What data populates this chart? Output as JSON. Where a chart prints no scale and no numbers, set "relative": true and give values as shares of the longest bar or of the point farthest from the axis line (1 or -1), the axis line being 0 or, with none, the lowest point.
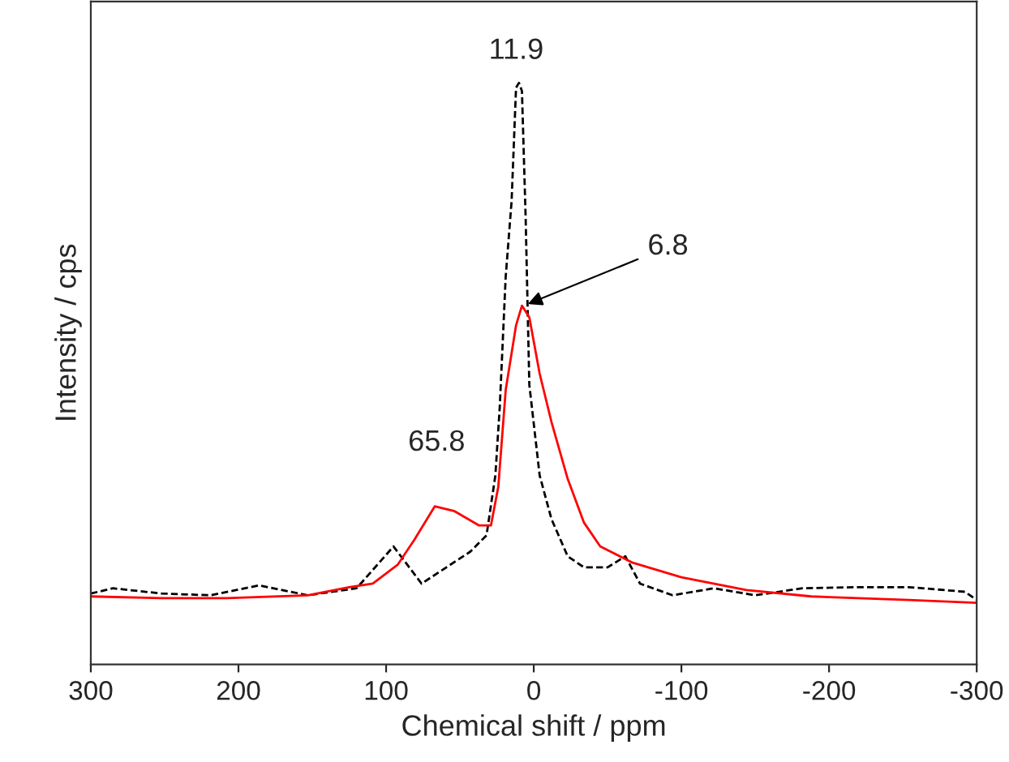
{
  "chart_data": {
    "type": "line",
    "xlabel": "Chemical shift / ppm",
    "ylabel": "Intensity / cps",
    "relative": true,
    "xlim": [
      300,
      -300
    ],
    "xticks": [
      300,
      200,
      100,
      0,
      -100,
      -200,
      -300
    ],
    "grid": false,
    "legend": false,
    "marker": "none",
    "series": [
      {
        "color": "#000000",
        "line_style": "dashed",
        "x": [
          300,
          285,
          252,
          219,
          186,
          153,
          120,
          95,
          76,
          43,
          32,
          26,
          23,
          19,
          15,
          12,
          10,
          8,
          5.5,
          3,
          -4,
          -12,
          -23,
          -34,
          -50,
          -62,
          -72,
          -94,
          -122,
          -150,
          -182,
          -221,
          -254,
          -292,
          -300
        ],
        "values": [
          0.122,
          0.131,
          0.122,
          0.119,
          0.136,
          0.119,
          0.131,
          0.203,
          0.139,
          0.194,
          0.222,
          0.325,
          0.444,
          0.667,
          0.797,
          0.992,
          1,
          0.986,
          0.769,
          0.481,
          0.325,
          0.25,
          0.186,
          0.167,
          0.167,
          0.186,
          0.139,
          0.119,
          0.131,
          0.119,
          0.131,
          0.133,
          0.133,
          0.125,
          0.111
        ]
      },
      {
        "color": "#ff0000",
        "line_style": "solid",
        "x": [
          300,
          252,
          208,
          153,
          125,
          109,
          92,
          81,
          67,
          54,
          37,
          29,
          24,
          19,
          12,
          8,
          3,
          -4,
          -12,
          -23,
          -34,
          -45,
          -67,
          -100,
          -144,
          -188,
          -254,
          -300
        ],
        "values": [
          0.117,
          0.114,
          0.114,
          0.119,
          0.133,
          0.139,
          0.172,
          0.214,
          0.272,
          0.264,
          0.239,
          0.239,
          0.306,
          0.472,
          0.583,
          0.617,
          0.597,
          0.5,
          0.417,
          0.319,
          0.244,
          0.203,
          0.175,
          0.15,
          0.128,
          0.117,
          0.111,
          0.106
        ]
      }
    ],
    "annotations": [
      {
        "text": "11.9",
        "x": 11.9,
        "y": 1
      },
      {
        "text": "65.8",
        "x": 65.8,
        "y": 0.272
      },
      {
        "text": "6.8",
        "x": 6.8,
        "y": 0.617
      }
    ]
  }
}
